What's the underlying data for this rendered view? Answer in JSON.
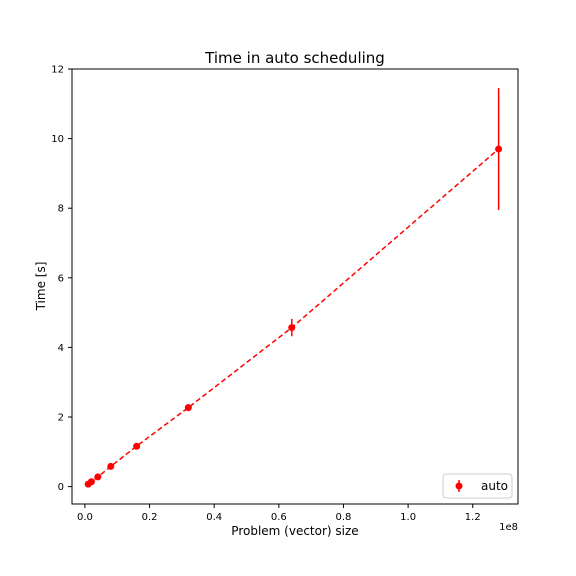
{
  "chart_data": {
    "type": "scatter",
    "title": "Time in auto scheduling",
    "xlabel": "Problem (vector) size",
    "ylabel": "Time [s]",
    "x_offset_label": "1e8",
    "xlim": [
      -4000000,
      134000000
    ],
    "ylim": [
      -0.5,
      12
    ],
    "x_ticks": [
      {
        "value": 0,
        "label": "0.0"
      },
      {
        "value": 20000000,
        "label": "0.2"
      },
      {
        "value": 40000000,
        "label": "0.4"
      },
      {
        "value": 60000000,
        "label": "0.6"
      },
      {
        "value": 80000000,
        "label": "0.8"
      },
      {
        "value": 100000000,
        "label": "1.0"
      },
      {
        "value": 120000000,
        "label": "1.2"
      }
    ],
    "y_ticks": [
      {
        "value": 0,
        "label": "0"
      },
      {
        "value": 2,
        "label": "2"
      },
      {
        "value": 4,
        "label": "4"
      },
      {
        "value": 6,
        "label": "6"
      },
      {
        "value": 8,
        "label": "8"
      },
      {
        "value": 10,
        "label": "10"
      },
      {
        "value": 12,
        "label": "12"
      }
    ],
    "grid": false,
    "legend_position": "bottom-right",
    "series": [
      {
        "name": "auto",
        "color": "#ff0000",
        "line_style": "dashed",
        "marker": "circle",
        "points": [
          {
            "x": 1000000,
            "y": 0.07,
            "err": 0.02
          },
          {
            "x": 2000000,
            "y": 0.14,
            "err": 0.02
          },
          {
            "x": 4000000,
            "y": 0.28,
            "err": 0.03
          },
          {
            "x": 8000000,
            "y": 0.58,
            "err": 0.04
          },
          {
            "x": 16000000,
            "y": 1.16,
            "err": 0.06
          },
          {
            "x": 32000000,
            "y": 2.27,
            "err": 0.1
          },
          {
            "x": 64000000,
            "y": 4.57,
            "err": 0.25
          },
          {
            "x": 128000000,
            "y": 9.7,
            "err": 1.75
          }
        ]
      }
    ]
  }
}
